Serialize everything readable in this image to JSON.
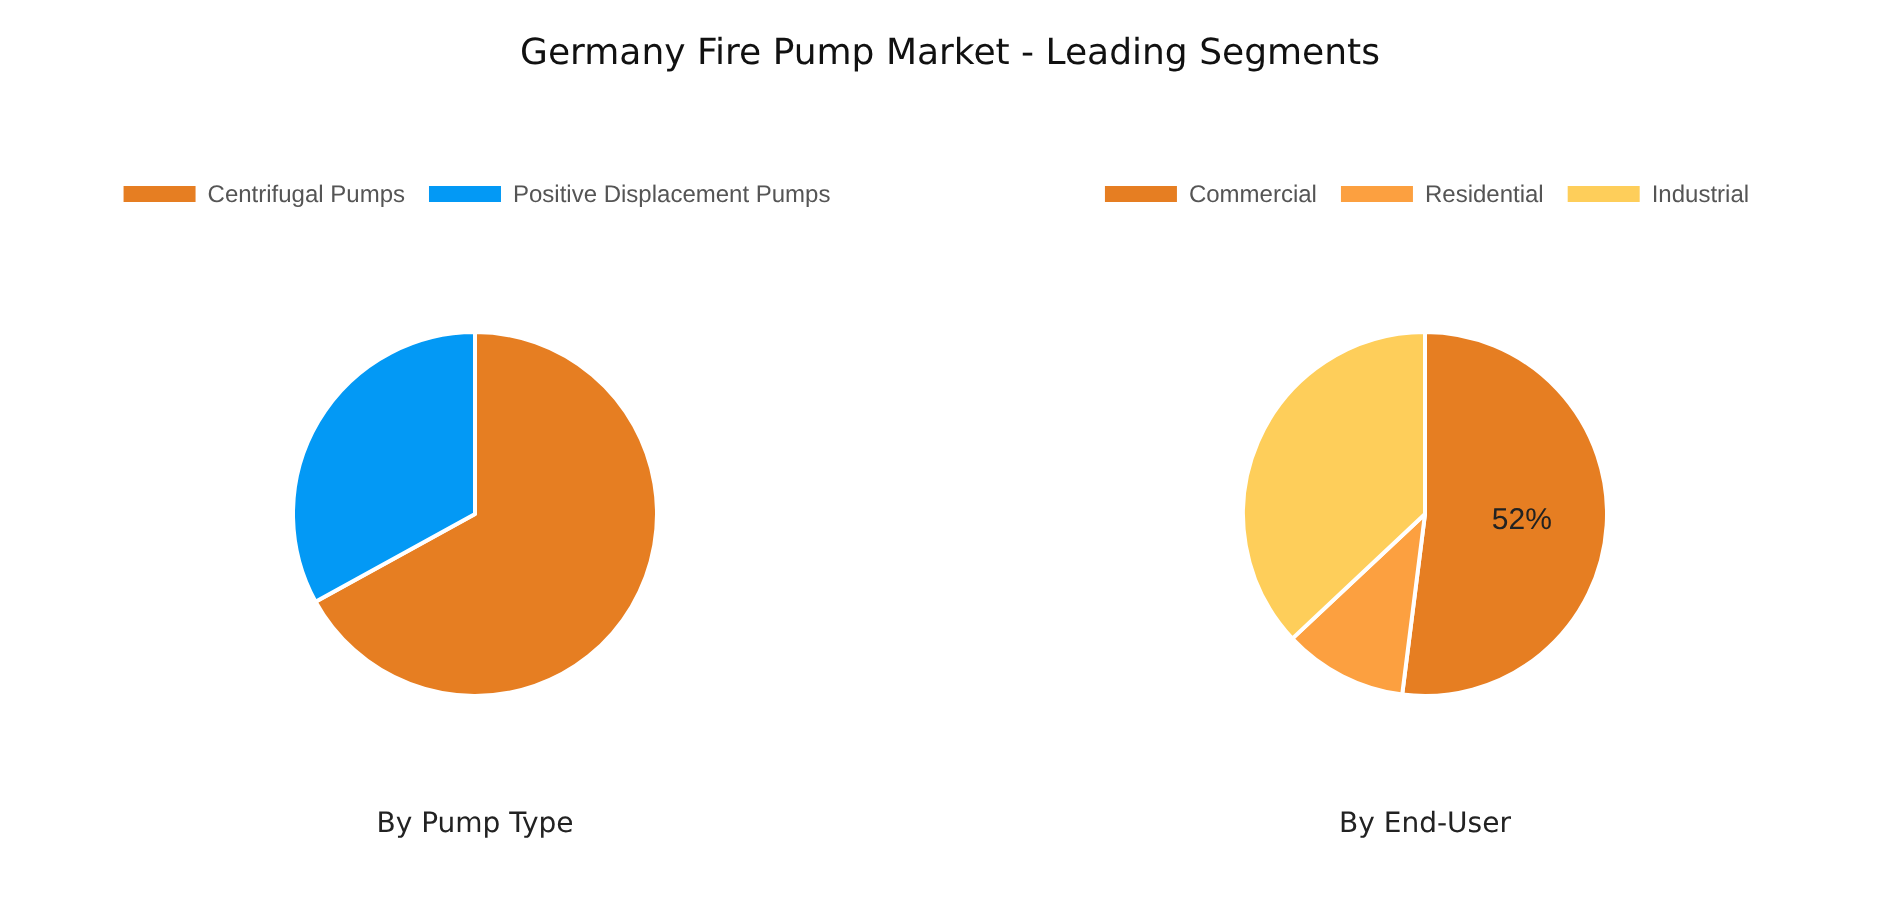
{
  "chart_data": [
    {
      "type": "pie",
      "title": "Germany Fire Pump Market - Leading Segments",
      "xlabel": "By Pump Type",
      "categories": [
        "Centrifugal Pumps",
        "Positive Displacement Pumps"
      ],
      "values": [
        67,
        33
      ],
      "colors": [
        "#e67e22",
        "#0399f5"
      ],
      "legend": "top"
    },
    {
      "type": "pie",
      "xlabel": "By End-User",
      "categories": [
        "Commercial",
        "Residential",
        "Industrial"
      ],
      "values": [
        52,
        11,
        37
      ],
      "colors": [
        "#e67e22",
        "#fca040",
        "#fece5a"
      ],
      "value_labels": [
        "52%",
        null,
        null
      ],
      "legend": "top"
    }
  ]
}
